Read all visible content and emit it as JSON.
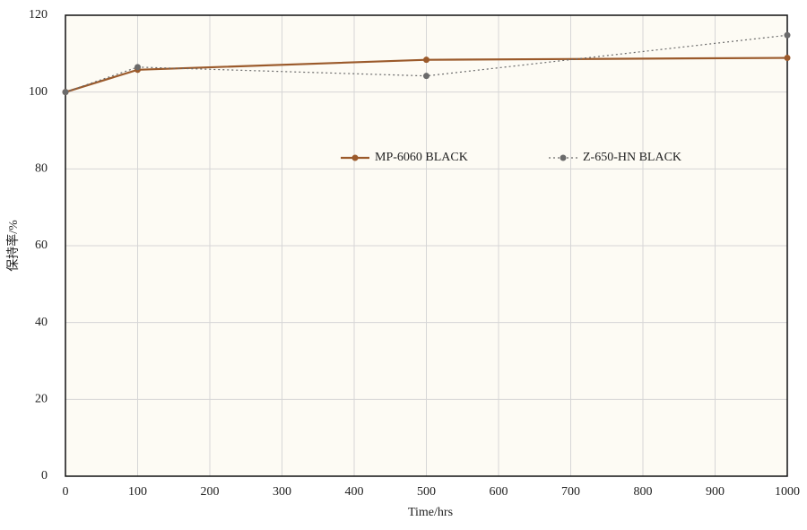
{
  "chart_data": {
    "type": "line",
    "xlabel": "Time/hrs",
    "ylabel": "保持率/%",
    "x": [
      0,
      100,
      500,
      1000
    ],
    "series": [
      {
        "name": "MP-6060 BLACK",
        "color": "#9b5a2b",
        "linestyle": "solid",
        "values": [
          100,
          105.8,
          108.4,
          108.9
        ]
      },
      {
        "name": "Z-650-HN BLACK",
        "color": "#6b6b6b",
        "linestyle": "dotted",
        "values": [
          100,
          106.5,
          104.2,
          114.8
        ]
      }
    ],
    "xlim": [
      0,
      1000
    ],
    "xticks": [
      0,
      100,
      200,
      300,
      400,
      500,
      600,
      700,
      800,
      900,
      1000
    ],
    "ylim": [
      0,
      120
    ],
    "yticks": [
      0,
      20,
      40,
      60,
      80,
      100,
      120
    ],
    "grid": true,
    "legend": "center"
  }
}
